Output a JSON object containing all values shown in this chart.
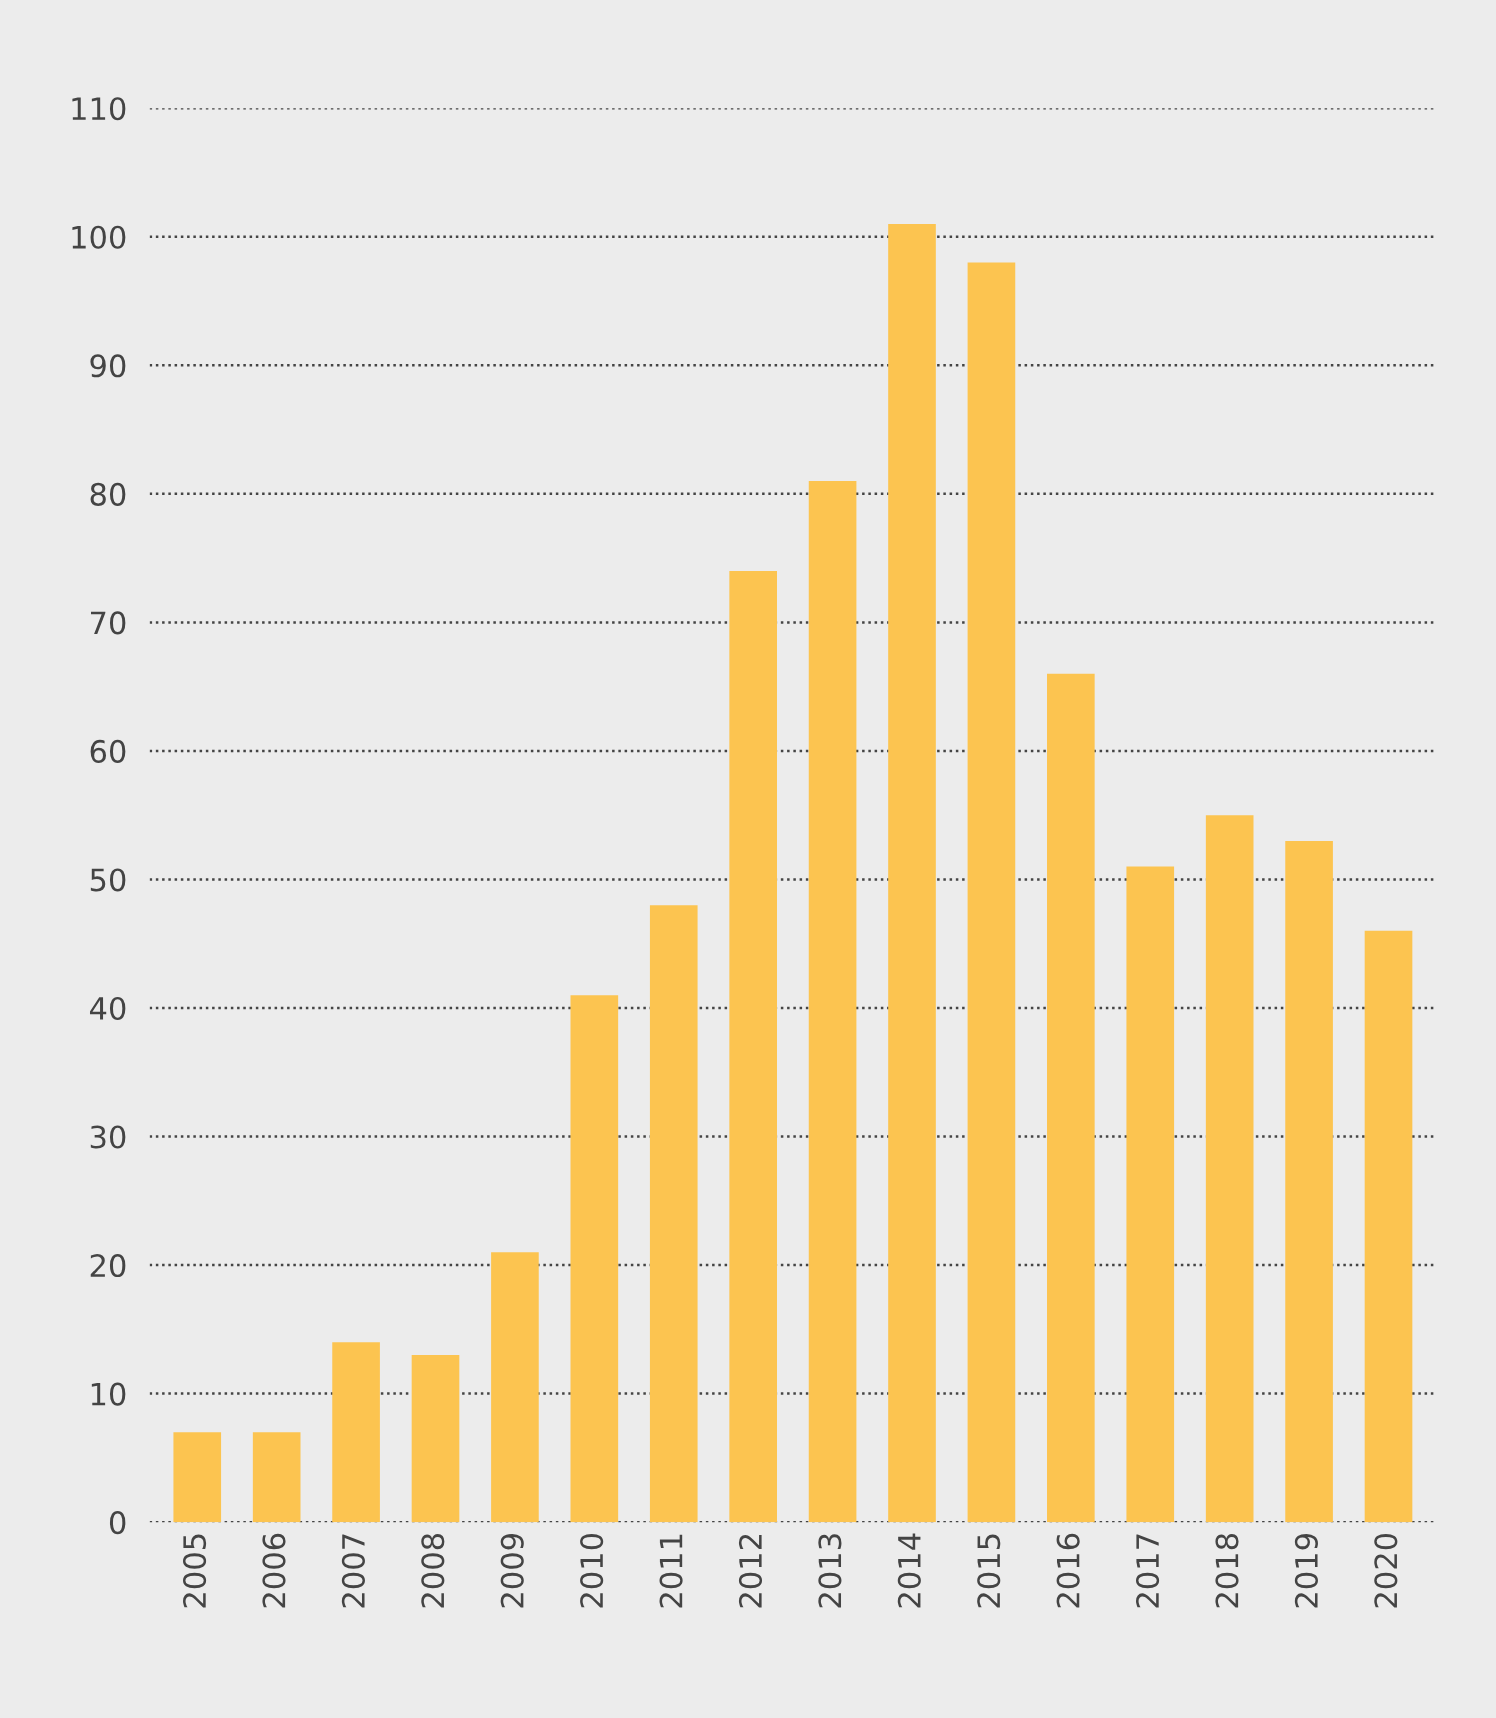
{
  "chart_data": {
    "type": "bar",
    "categories": [
      "2005",
      "2006",
      "2007",
      "2008",
      "2009",
      "2010",
      "2011",
      "2012",
      "2013",
      "2014",
      "2015",
      "2016",
      "2017",
      "2018",
      "2019",
      "2020"
    ],
    "values": [
      7,
      7,
      14,
      13,
      21,
      41,
      48,
      74,
      81,
      101,
      98,
      66,
      51,
      55,
      53,
      46
    ],
    "color": "#fcc450",
    "ylim": [
      0,
      110
    ],
    "yticks": [
      0,
      10,
      20,
      30,
      40,
      50,
      60,
      70,
      80,
      90,
      100,
      110
    ],
    "grid": "y"
  }
}
